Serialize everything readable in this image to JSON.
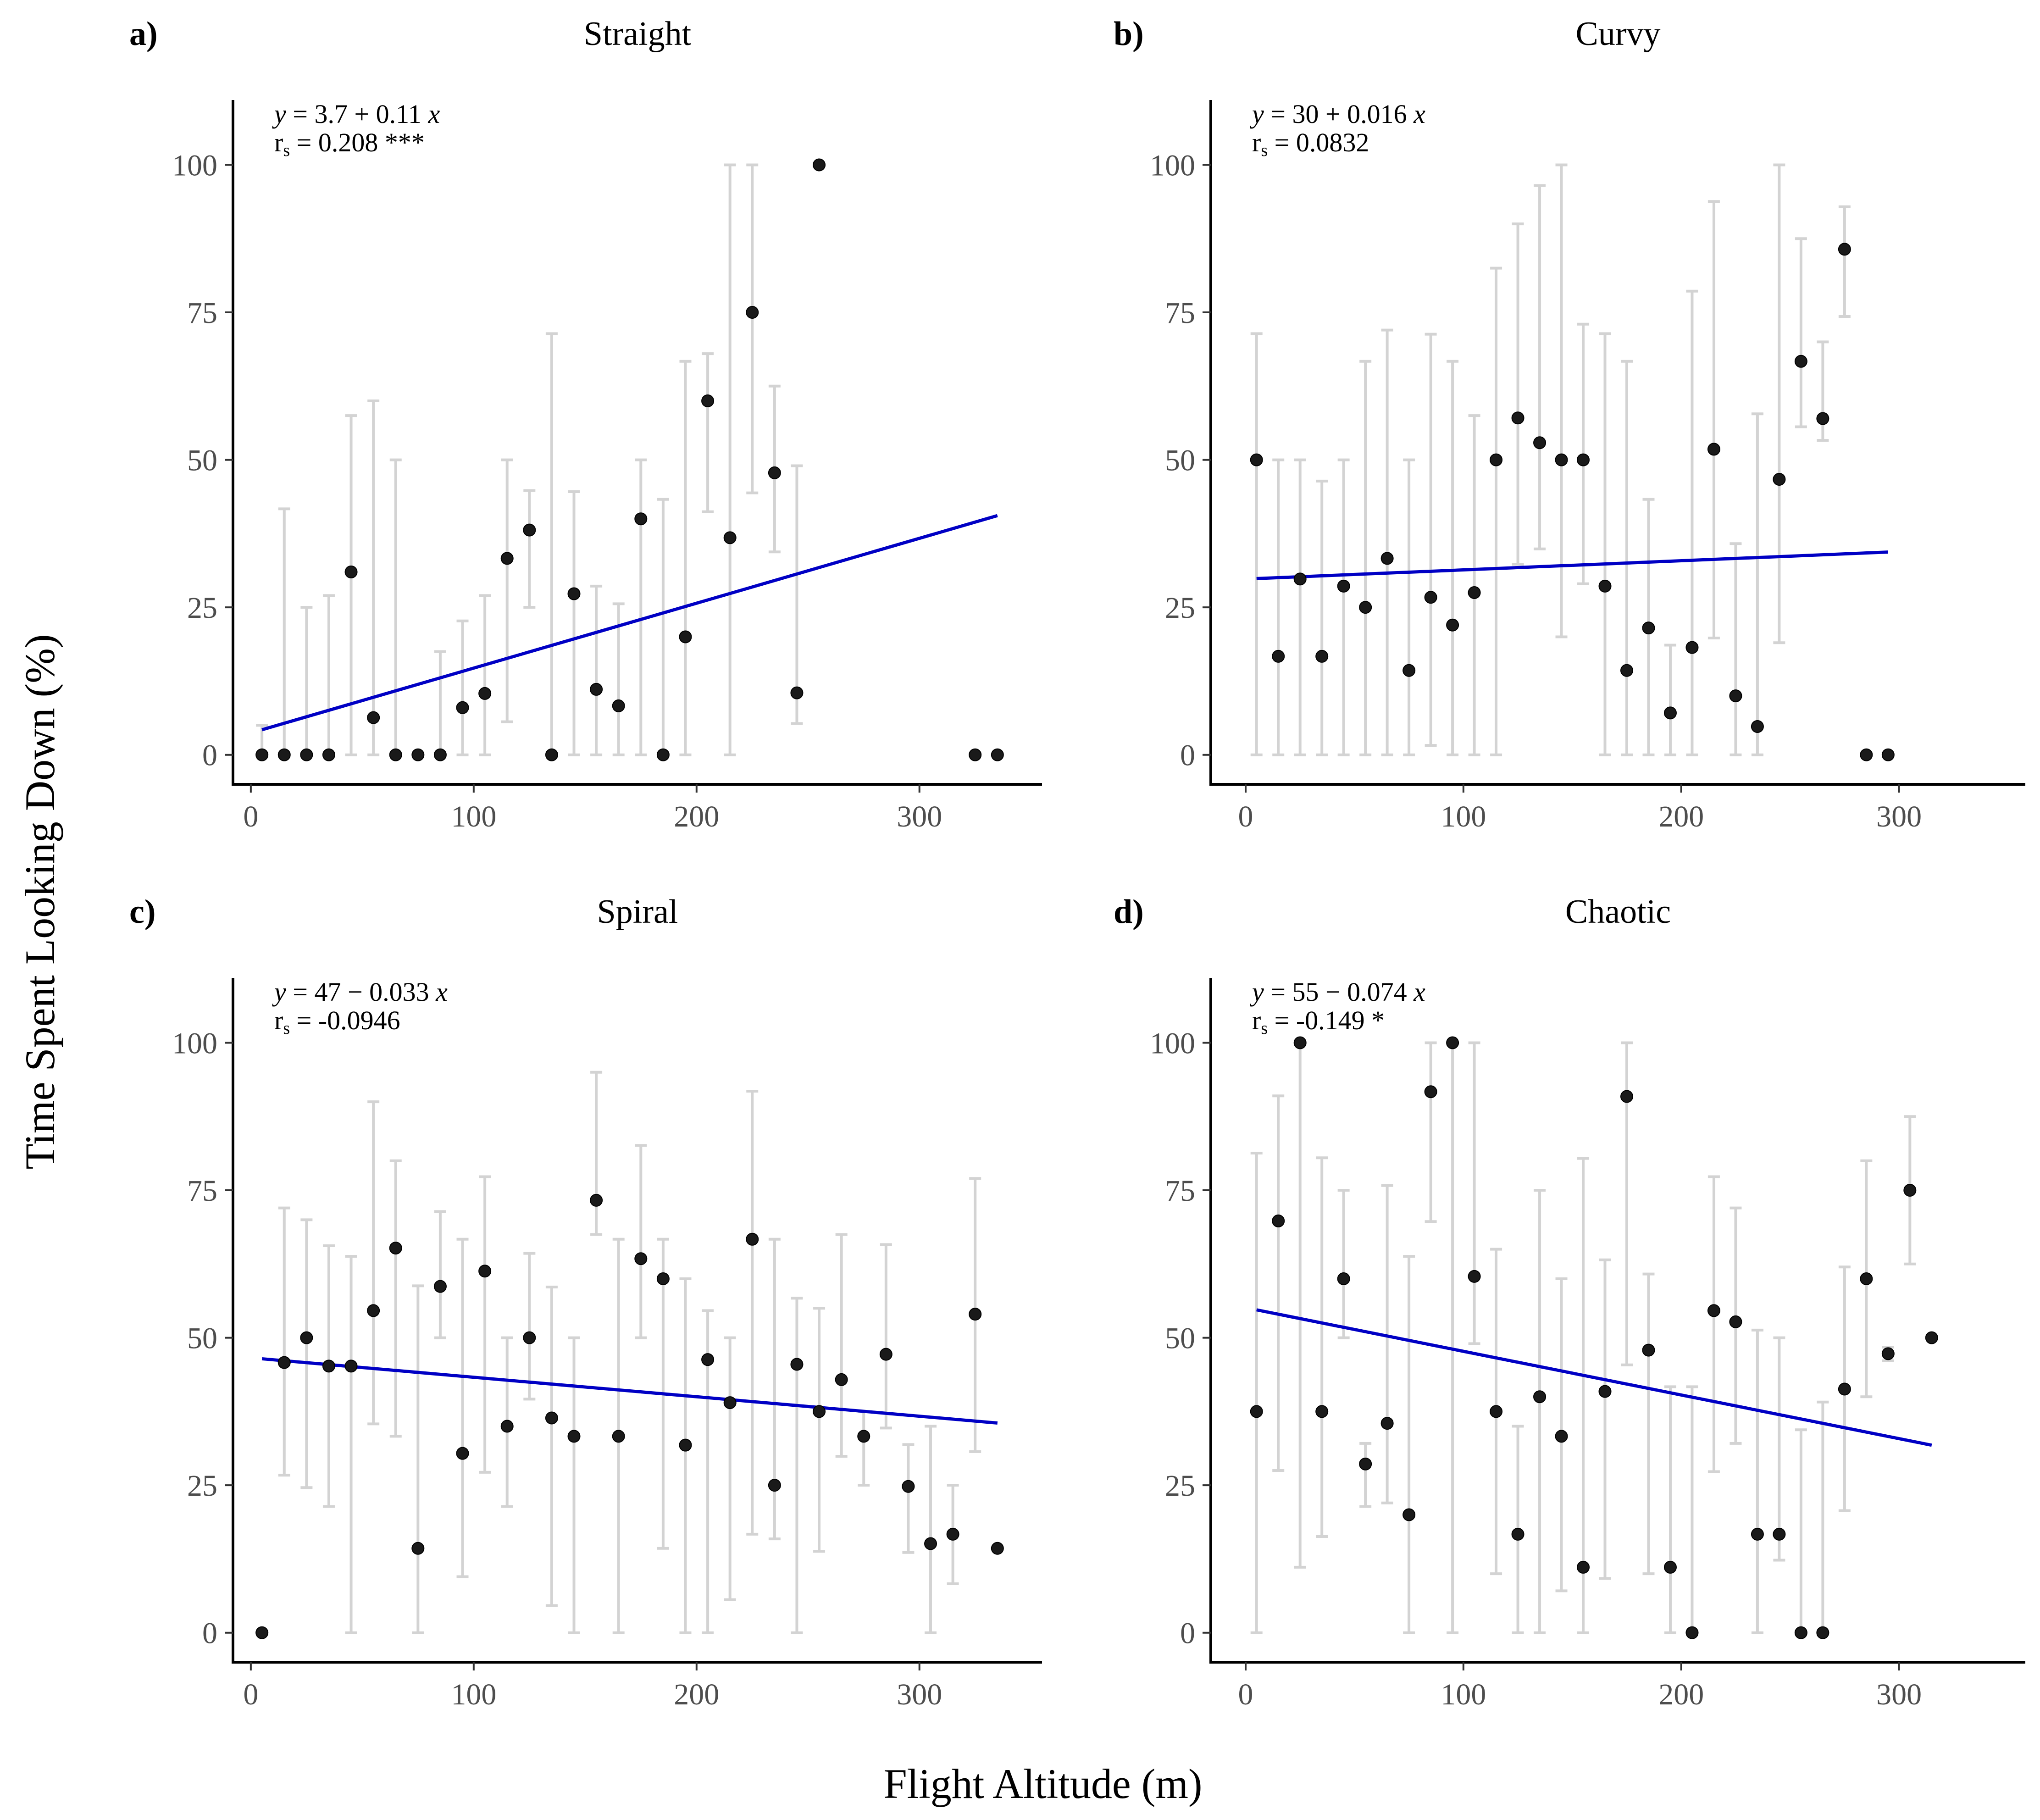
{
  "figure": {
    "xlabel": "Flight Altitude (m)",
    "ylabel": "Time Spent Looking Down (%)"
  },
  "colors": {
    "fit_line": "#0000c4",
    "point": "#1a1a1a",
    "error_bar": "#d3d3d3",
    "tick_label": "#4d4d4d"
  },
  "chart_data": [
    {
      "type": "scatter",
      "letter": "a)",
      "title": "Straight",
      "equation": {
        "y": "y",
        "rhs": " = 3.7 + 0.11 ",
        "x": "x"
      },
      "correlation": {
        "r": "r",
        "sub": "s",
        "rhs": " = 0.208 ***"
      },
      "fit": {
        "intercept": 3.7,
        "slope": 0.11,
        "x_range": [
          5,
          335
        ]
      },
      "xlim": [
        -8,
        355
      ],
      "ylim": [
        -5,
        111
      ],
      "xticks": [
        0,
        100,
        200,
        300
      ],
      "yticks": [
        0,
        25,
        50,
        75,
        100
      ],
      "points": [
        {
          "x": 5,
          "y": 0,
          "lo": 0,
          "hi": 5
        },
        {
          "x": 15,
          "y": 0,
          "lo": 0,
          "hi": 41.7
        },
        {
          "x": 25,
          "y": 0,
          "lo": 0,
          "hi": 25
        },
        {
          "x": 35,
          "y": 0,
          "lo": 0,
          "hi": 27
        },
        {
          "x": 45,
          "y": 31,
          "lo": 0,
          "hi": 57.5
        },
        {
          "x": 55,
          "y": 6.3,
          "lo": 0,
          "hi": 60
        },
        {
          "x": 65,
          "y": 0,
          "lo": 0,
          "hi": 50
        },
        {
          "x": 75,
          "y": 0,
          "lo": 0,
          "hi": 0
        },
        {
          "x": 85,
          "y": 0,
          "lo": 0,
          "hi": 17.5
        },
        {
          "x": 95,
          "y": 8,
          "lo": 0,
          "hi": 22.7
        },
        {
          "x": 105,
          "y": 10.4,
          "lo": 0,
          "hi": 27
        },
        {
          "x": 115,
          "y": 33.3,
          "lo": 5.6,
          "hi": 50
        },
        {
          "x": 125,
          "y": 38.1,
          "lo": 25,
          "hi": 44.8
        },
        {
          "x": 135,
          "y": 0,
          "lo": 0,
          "hi": 71.4
        },
        {
          "x": 145,
          "y": 27.3,
          "lo": 0,
          "hi": 44.6
        },
        {
          "x": 155,
          "y": 11.1,
          "lo": 0,
          "hi": 28.6
        },
        {
          "x": 165,
          "y": 8.3,
          "lo": 0,
          "hi": 25.6
        },
        {
          "x": 175,
          "y": 40,
          "lo": 0,
          "hi": 50
        },
        {
          "x": 185,
          "y": 0,
          "lo": 0,
          "hi": 43.3
        },
        {
          "x": 195,
          "y": 20,
          "lo": 0,
          "hi": 66.7
        },
        {
          "x": 205,
          "y": 60,
          "lo": 41.2,
          "hi": 68
        },
        {
          "x": 215,
          "y": 36.8,
          "lo": 0,
          "hi": 100
        },
        {
          "x": 225,
          "y": 75,
          "lo": 44.4,
          "hi": 100
        },
        {
          "x": 235,
          "y": 47.8,
          "lo": 34.4,
          "hi": 62.5
        },
        {
          "x": 245,
          "y": 10.5,
          "lo": 5.3,
          "hi": 49
        },
        {
          "x": 255,
          "y": 100,
          "lo": 100,
          "hi": 100
        },
        {
          "x": 325,
          "y": 0,
          "lo": 0,
          "hi": 0
        },
        {
          "x": 335,
          "y": 0,
          "lo": 0,
          "hi": 0
        }
      ]
    },
    {
      "type": "scatter",
      "letter": "b)",
      "title": "Curvy",
      "equation": {
        "y": "y",
        "rhs": " = 30 + 0.016 ",
        "x": "x"
      },
      "correlation": {
        "r": "r",
        "sub": "s",
        "rhs": " = 0.0832"
      },
      "fit": {
        "intercept": 29.8,
        "slope": 0.0155,
        "x_range": [
          5,
          295
        ]
      },
      "xlim": [
        -16,
        358
      ],
      "ylim": [
        -5,
        111
      ],
      "xticks": [
        0,
        100,
        200,
        300
      ],
      "yticks": [
        0,
        25,
        50,
        75,
        100
      ],
      "points": [
        {
          "x": 5,
          "y": 50,
          "lo": 0,
          "hi": 71.4
        },
        {
          "x": 15,
          "y": 16.7,
          "lo": 0,
          "hi": 50
        },
        {
          "x": 25,
          "y": 29.8,
          "lo": 0,
          "hi": 50
        },
        {
          "x": 35,
          "y": 16.7,
          "lo": 0,
          "hi": 46.4
        },
        {
          "x": 45,
          "y": 28.6,
          "lo": 0,
          "hi": 50
        },
        {
          "x": 55,
          "y": 25,
          "lo": 0,
          "hi": 66.7
        },
        {
          "x": 65,
          "y": 33.3,
          "lo": 0,
          "hi": 72
        },
        {
          "x": 75,
          "y": 14.3,
          "lo": 0,
          "hi": 50
        },
        {
          "x": 85,
          "y": 26.7,
          "lo": 1.6,
          "hi": 71.3
        },
        {
          "x": 95,
          "y": 22,
          "lo": 0,
          "hi": 66.7
        },
        {
          "x": 105,
          "y": 27.5,
          "lo": 0,
          "hi": 57.5
        },
        {
          "x": 115,
          "y": 50,
          "lo": 0,
          "hi": 82.5
        },
        {
          "x": 125,
          "y": 57.1,
          "lo": 32.3,
          "hi": 90
        },
        {
          "x": 135,
          "y": 52.9,
          "lo": 34.9,
          "hi": 96.5
        },
        {
          "x": 145,
          "y": 50,
          "lo": 20,
          "hi": 100
        },
        {
          "x": 155,
          "y": 50,
          "lo": 29,
          "hi": 73
        },
        {
          "x": 165,
          "y": 28.6,
          "lo": 0,
          "hi": 71.4
        },
        {
          "x": 175,
          "y": 14.3,
          "lo": 0,
          "hi": 66.7
        },
        {
          "x": 185,
          "y": 21.5,
          "lo": 0,
          "hi": 43.3
        },
        {
          "x": 195,
          "y": 7.1,
          "lo": 0,
          "hi": 18.6
        },
        {
          "x": 205,
          "y": 18.2,
          "lo": 0,
          "hi": 78.6
        },
        {
          "x": 215,
          "y": 51.8,
          "lo": 19.8,
          "hi": 93.8
        },
        {
          "x": 225,
          "y": 10,
          "lo": 0,
          "hi": 35.8
        },
        {
          "x": 235,
          "y": 4.8,
          "lo": 0,
          "hi": 57.8
        },
        {
          "x": 245,
          "y": 46.7,
          "lo": 19,
          "hi": 100
        },
        {
          "x": 255,
          "y": 66.7,
          "lo": 55.6,
          "hi": 87.5
        },
        {
          "x": 265,
          "y": 57,
          "lo": 53.3,
          "hi": 70
        },
        {
          "x": 275,
          "y": 85.7,
          "lo": 74.3,
          "hi": 92.9
        },
        {
          "x": 285,
          "y": 0,
          "lo": 0,
          "hi": 0
        },
        {
          "x": 295,
          "y": 0,
          "lo": 0,
          "hi": 0
        }
      ]
    },
    {
      "type": "scatter",
      "letter": "c)",
      "title": "Spiral",
      "equation": {
        "y": "y",
        "rhs": " = 47 − 0.033 ",
        "x": "x"
      },
      "correlation": {
        "r": "r",
        "sub": "s",
        "rhs": " = -0.0946"
      },
      "fit": {
        "intercept": 46.6,
        "slope": -0.033,
        "x_range": [
          5,
          335
        ]
      },
      "xlim": [
        -8,
        355
      ],
      "ylim": [
        -5,
        111
      ],
      "xticks": [
        0,
        100,
        200,
        300
      ],
      "yticks": [
        0,
        25,
        50,
        75,
        100
      ],
      "points": [
        {
          "x": 5,
          "y": 0,
          "lo": 0,
          "hi": 0
        },
        {
          "x": 15,
          "y": 45.8,
          "lo": 26.7,
          "hi": 72
        },
        {
          "x": 25,
          "y": 50,
          "lo": 24.6,
          "hi": 70
        },
        {
          "x": 35,
          "y": 45.2,
          "lo": 21.4,
          "hi": 65.6
        },
        {
          "x": 45,
          "y": 45.2,
          "lo": 0,
          "hi": 63.8
        },
        {
          "x": 55,
          "y": 54.6,
          "lo": 35.4,
          "hi": 90
        },
        {
          "x": 65,
          "y": 65.2,
          "lo": 33.3,
          "hi": 80
        },
        {
          "x": 75,
          "y": 14.3,
          "lo": 0,
          "hi": 58.8
        },
        {
          "x": 85,
          "y": 58.7,
          "lo": 50,
          "hi": 71.4
        },
        {
          "x": 95,
          "y": 30.4,
          "lo": 9.5,
          "hi": 66.7
        },
        {
          "x": 105,
          "y": 61.3,
          "lo": 27.2,
          "hi": 77.3
        },
        {
          "x": 115,
          "y": 35,
          "lo": 21.4,
          "hi": 50
        },
        {
          "x": 125,
          "y": 50,
          "lo": 39.6,
          "hi": 64.3
        },
        {
          "x": 135,
          "y": 36.4,
          "lo": 4.6,
          "hi": 58.6
        },
        {
          "x": 145,
          "y": 33.3,
          "lo": 0,
          "hi": 50
        },
        {
          "x": 155,
          "y": 73.3,
          "lo": 67.5,
          "hi": 95
        },
        {
          "x": 165,
          "y": 33.3,
          "lo": 0,
          "hi": 66.7
        },
        {
          "x": 175,
          "y": 63.4,
          "lo": 50,
          "hi": 82.6
        },
        {
          "x": 185,
          "y": 60,
          "lo": 14.3,
          "hi": 66.7
        },
        {
          "x": 195,
          "y": 31.8,
          "lo": 0,
          "hi": 60
        },
        {
          "x": 205,
          "y": 46.3,
          "lo": 0,
          "hi": 54.6
        },
        {
          "x": 215,
          "y": 39,
          "lo": 5.6,
          "hi": 50
        },
        {
          "x": 225,
          "y": 66.7,
          "lo": 16.7,
          "hi": 91.8
        },
        {
          "x": 235,
          "y": 25,
          "lo": 15.9,
          "hi": 66.7
        },
        {
          "x": 245,
          "y": 45.5,
          "lo": 0,
          "hi": 56.7
        },
        {
          "x": 255,
          "y": 37.5,
          "lo": 13.8,
          "hi": 55
        },
        {
          "x": 265,
          "y": 42.9,
          "lo": 29.9,
          "hi": 67.5
        },
        {
          "x": 275,
          "y": 33.3,
          "lo": 25,
          "hi": 37.5
        },
        {
          "x": 285,
          "y": 47.2,
          "lo": 34.7,
          "hi": 65.8
        },
        {
          "x": 295,
          "y": 24.8,
          "lo": 13.6,
          "hi": 31.9
        },
        {
          "x": 305,
          "y": 15.1,
          "lo": 0,
          "hi": 35
        },
        {
          "x": 315,
          "y": 16.7,
          "lo": 8.3,
          "hi": 25
        },
        {
          "x": 325,
          "y": 54,
          "lo": 30.7,
          "hi": 77
        },
        {
          "x": 335,
          "y": 14.3,
          "lo": 14.3,
          "hi": 14.3
        }
      ]
    },
    {
      "type": "scatter",
      "letter": "d)",
      "title": "Chaotic",
      "equation": {
        "y": "y",
        "rhs": " = 55 − 0.074 ",
        "x": "x"
      },
      "correlation": {
        "r": "r",
        "sub": "s",
        "rhs": " = -0.149 *"
      },
      "fit": {
        "intercept": 55.1,
        "slope": -0.074,
        "x_range": [
          5,
          315
        ]
      },
      "xlim": [
        -16,
        358
      ],
      "ylim": [
        -5,
        111
      ],
      "xticks": [
        0,
        100,
        200,
        300
      ],
      "yticks": [
        0,
        25,
        50,
        75,
        100
      ],
      "points": [
        {
          "x": 5,
          "y": 37.5,
          "lo": 0,
          "hi": 81.3
        },
        {
          "x": 15,
          "y": 69.8,
          "lo": 27.5,
          "hi": 91
        },
        {
          "x": 25,
          "y": 100,
          "lo": 11.1,
          "hi": 100
        },
        {
          "x": 35,
          "y": 37.5,
          "lo": 16.3,
          "hi": 80.5
        },
        {
          "x": 45,
          "y": 60,
          "lo": 50,
          "hi": 75
        },
        {
          "x": 55,
          "y": 28.6,
          "lo": 21.4,
          "hi": 32.1
        },
        {
          "x": 65,
          "y": 35.5,
          "lo": 22,
          "hi": 75.8
        },
        {
          "x": 75,
          "y": 20,
          "lo": 0,
          "hi": 63.8
        },
        {
          "x": 85,
          "y": 91.7,
          "lo": 69.7,
          "hi": 100
        },
        {
          "x": 95,
          "y": 100,
          "lo": 0,
          "hi": 100
        },
        {
          "x": 105,
          "y": 60.4,
          "lo": 49,
          "hi": 100
        },
        {
          "x": 115,
          "y": 37.5,
          "lo": 10,
          "hi": 65
        },
        {
          "x": 125,
          "y": 16.7,
          "lo": 0,
          "hi": 35
        },
        {
          "x": 135,
          "y": 40,
          "lo": 0,
          "hi": 75
        },
        {
          "x": 145,
          "y": 33.3,
          "lo": 7.1,
          "hi": 60
        },
        {
          "x": 155,
          "y": 11.1,
          "lo": 0,
          "hi": 80.4
        },
        {
          "x": 165,
          "y": 40.9,
          "lo": 9.2,
          "hi": 63.2
        },
        {
          "x": 175,
          "y": 90.9,
          "lo": 45.4,
          "hi": 100
        },
        {
          "x": 185,
          "y": 47.9,
          "lo": 10,
          "hi": 60.8
        },
        {
          "x": 195,
          "y": 11.1,
          "lo": 0,
          "hi": 41.7
        },
        {
          "x": 205,
          "y": 0,
          "lo": 0,
          "hi": 41.7
        },
        {
          "x": 215,
          "y": 54.6,
          "lo": 27.3,
          "hi": 77.3
        },
        {
          "x": 225,
          "y": 52.7,
          "lo": 32.1,
          "hi": 72
        },
        {
          "x": 235,
          "y": 16.7,
          "lo": 0,
          "hi": 51.3
        },
        {
          "x": 245,
          "y": 16.7,
          "lo": 12.3,
          "hi": 50
        },
        {
          "x": 255,
          "y": 0,
          "lo": 0,
          "hi": 34.4
        },
        {
          "x": 265,
          "y": 0,
          "lo": 0,
          "hi": 39.1
        },
        {
          "x": 275,
          "y": 41.3,
          "lo": 20.7,
          "hi": 62
        },
        {
          "x": 285,
          "y": 60,
          "lo": 40,
          "hi": 80
        },
        {
          "x": 295,
          "y": 47.3,
          "lo": 46.1,
          "hi": 48.4
        },
        {
          "x": 305,
          "y": 75,
          "lo": 62.5,
          "hi": 87.5
        },
        {
          "x": 315,
          "y": 50,
          "lo": 50,
          "hi": 50
        }
      ]
    }
  ]
}
